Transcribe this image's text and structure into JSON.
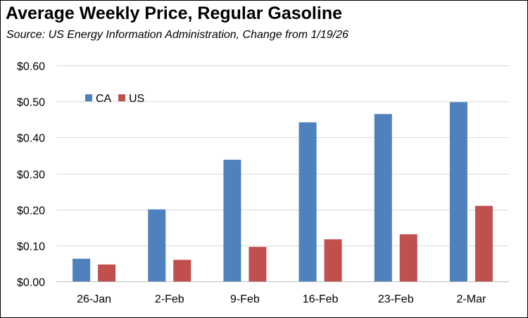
{
  "chart_data": {
    "type": "bar",
    "title": "Average Weekly Price, Regular Gasoline",
    "subtitle": "Source:  US Energy Information Administration, Change from 1/19/26",
    "categories": [
      "26-Jan",
      "2-Feb",
      "9-Feb",
      "16-Feb",
      "23-Feb",
      "2-Mar"
    ],
    "series": [
      {
        "name": "CA",
        "color": "#4f81bd",
        "values": [
          0.063,
          0.2,
          0.338,
          0.442,
          0.465,
          0.498
        ]
      },
      {
        "name": "US",
        "color": "#c0504d",
        "values": [
          0.047,
          0.06,
          0.096,
          0.117,
          0.131,
          0.21
        ]
      }
    ],
    "ylim": [
      0,
      0.6
    ],
    "yticks": [
      0,
      0.1,
      0.2,
      0.3,
      0.4,
      0.5,
      0.6
    ],
    "ytick_labels": [
      "$0.00",
      "$0.10",
      "$0.20",
      "$0.30",
      "$0.40",
      "$0.50",
      "$0.60"
    ],
    "grid": true,
    "legend_position": "top-left",
    "xlabel": "",
    "ylabel": ""
  }
}
